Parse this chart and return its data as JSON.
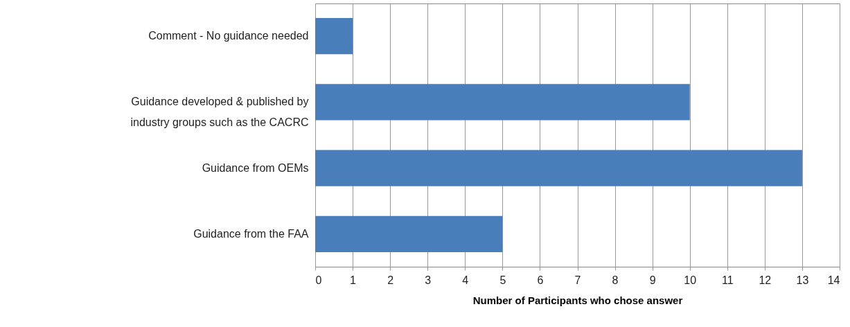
{
  "chart_data": {
    "type": "bar",
    "orientation": "horizontal",
    "categories": [
      "Comment - No guidance needed",
      "Guidance developed & published by\nindustry groups such as the CACRC",
      "Guidance from OEMs",
      "Guidance from the FAA"
    ],
    "values": [
      1,
      10,
      13,
      5
    ],
    "color": "#4a7ebb",
    "xlabel": "Number of Participants who chose answer",
    "xlim": [
      0,
      14
    ],
    "xticks": [
      0,
      1,
      2,
      3,
      4,
      5,
      6,
      7,
      8,
      9,
      10,
      11,
      12,
      13,
      14
    ],
    "grid": "x"
  }
}
